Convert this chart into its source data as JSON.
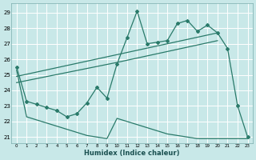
{
  "xlabel": "Humidex (Indice chaleur)",
  "xlim": [
    -0.5,
    23.5
  ],
  "ylim": [
    20.6,
    29.6
  ],
  "yticks": [
    21,
    22,
    23,
    24,
    25,
    26,
    27,
    28,
    29
  ],
  "xticks": [
    0,
    1,
    2,
    3,
    4,
    5,
    6,
    7,
    8,
    9,
    10,
    11,
    12,
    13,
    14,
    15,
    16,
    17,
    18,
    19,
    20,
    21,
    22,
    23
  ],
  "background_color": "#c8e8e8",
  "grid_color": "#b0d8d8",
  "line_color": "#2a7a6a",
  "series": [
    {
      "name": "jagged_main",
      "x": [
        0,
        1,
        2,
        3,
        4,
        5,
        6,
        7,
        8,
        9,
        10,
        11,
        12,
        13,
        14,
        15,
        16,
        17,
        18,
        19,
        20,
        21,
        22,
        23
      ],
      "y": [
        25.5,
        23.3,
        23.1,
        22.9,
        22.7,
        22.3,
        22.5,
        23.2,
        24.2,
        23.5,
        25.7,
        27.4,
        29.1,
        27.0,
        27.1,
        27.2,
        28.3,
        28.5,
        27.8,
        28.2,
        27.7,
        26.7,
        23.0,
        21.0
      ],
      "marker": "D",
      "markersize": 2.0,
      "lw": 0.9,
      "zorder": 4
    },
    {
      "name": "diagonal_upper",
      "x": [
        0,
        10,
        20
      ],
      "y": [
        24.9,
        26.3,
        27.7
      ],
      "marker": null,
      "markersize": 0,
      "lw": 0.9,
      "zorder": 3
    },
    {
      "name": "diagonal_lower",
      "x": [
        0,
        10,
        20
      ],
      "y": [
        24.5,
        25.8,
        27.2
      ],
      "marker": null,
      "markersize": 0,
      "lw": 0.9,
      "zorder": 3
    },
    {
      "name": "bottom_diagonal",
      "x": [
        0,
        1,
        2,
        3,
        4,
        5,
        6,
        7,
        8,
        9,
        10,
        11,
        12,
        13,
        14,
        15,
        16,
        17,
        18,
        19,
        20,
        21,
        22,
        23
      ],
      "y": [
        25.3,
        22.3,
        22.1,
        21.9,
        21.7,
        21.5,
        21.3,
        21.1,
        21.0,
        20.9,
        22.2,
        22.0,
        21.8,
        21.6,
        21.4,
        21.2,
        21.1,
        21.0,
        20.9,
        20.9,
        20.9,
        20.9,
        20.9,
        20.9
      ],
      "marker": null,
      "markersize": 0,
      "lw": 0.9,
      "zorder": 2
    }
  ]
}
